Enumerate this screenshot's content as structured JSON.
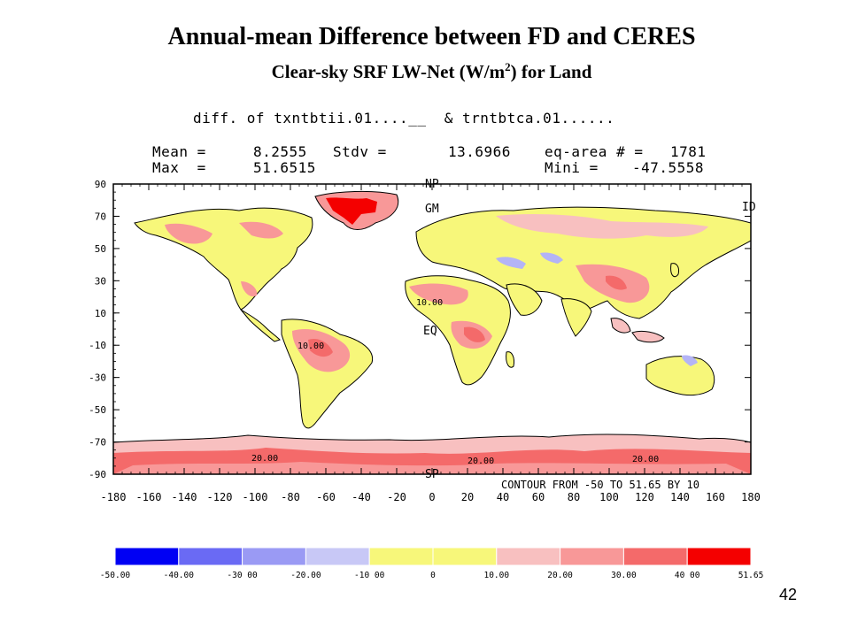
{
  "title": "Annual-mean Difference between FD and CERES",
  "subtitle_main": "Clear-sky SRF LW-Net (W/m",
  "subtitle_sup": "2",
  "subtitle_tail": ") for Land",
  "diff_line": "diff. of txntbtii.01....__  & trntbtca.01......",
  "stats": {
    "mean_label": "Mean =",
    "mean_value": "8.2555",
    "stdv_label": "Stdv =",
    "stdv_value": "13.6966",
    "eqarea_label": "eq-area # =",
    "eqarea_value": "1781",
    "max_label": "Max  =",
    "max_value": "51.6515",
    "mini_label": "Mini =",
    "mini_value": "-47.5558"
  },
  "map": {
    "lat_ticks": [
      "90",
      "70",
      "50",
      "30",
      "10",
      "-10",
      "-30",
      "-50",
      "-70",
      "-90"
    ],
    "lon_ticks": [
      "-180",
      "-160",
      "-140",
      "-120",
      "-100",
      "-80",
      "-60",
      "-40",
      "-20",
      "0",
      "20",
      "40",
      "60",
      "80",
      "100",
      "120",
      "140",
      "160",
      "180"
    ],
    "marker_np": "NP",
    "marker_gm": "GM",
    "marker_id": "ID",
    "marker_eq": "EQ",
    "marker_sp": "SP",
    "contour_note": "CONTOUR FROM -50 TO 51.65 BY 10",
    "contour_labels": [
      "10.00",
      "10.00",
      "20.00",
      "20.00",
      "20.00"
    ]
  },
  "colorbar": {
    "colors": [
      "#0000f4",
      "#6a6af4",
      "#9a9af4",
      "#c8c8f6",
      "#f7f77a",
      "#f7f77a",
      "#f8c0c0",
      "#f89898",
      "#f46a6a",
      "#f40000"
    ],
    "labels": [
      "-50.00",
      "-40.00",
      "-30 00",
      "-20.00",
      "-10 00",
      "0",
      "10.00",
      "20.00",
      "30.00",
      "40 00",
      "51.65"
    ]
  },
  "page_number": "42"
}
